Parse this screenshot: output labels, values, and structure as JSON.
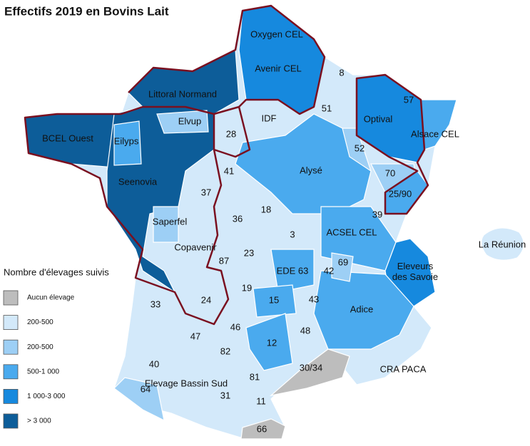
{
  "title": "Effectifs 2019 en Bovins Lait",
  "legend": {
    "title": "Nombre d'élevages suivis",
    "items": [
      {
        "label": "Aucun élevage",
        "color": "#bdbdbd"
      },
      {
        "label": "200-500",
        "color": "#d3e9fa"
      },
      {
        "label": "200-500",
        "color": "#9dcff5"
      },
      {
        "label": "500-1 000",
        "color": "#4aaaee"
      },
      {
        "label": "1 000-3 000",
        "color": "#1689de"
      },
      {
        "label": "> 3 000",
        "color": "#0d5d99"
      }
    ]
  },
  "labels": [
    "Oxygen CEL",
    "Avenir CEL",
    "8",
    "57",
    "Littoral Normand",
    "51",
    "Optival",
    "Alsace CEL",
    "IDF",
    "Elvup",
    "28",
    "BCEL Ouest",
    "Eilyps",
    "52",
    "41",
    "Alysé",
    "70",
    "Seenovia",
    "25/90",
    "37",
    "18",
    "36",
    "39",
    "Saperfel",
    "3",
    "ACSEL CEL",
    "La Réunion",
    "Copavenir",
    "87",
    "23",
    "69",
    "EDE 63",
    "42",
    "Eleveurs des Savoie",
    "19",
    "33",
    "24",
    "15",
    "43",
    "Adice",
    "46",
    "48",
    "47",
    "82",
    "12",
    "40",
    "30/34",
    "CRA PACA",
    "81",
    "Elevage Bassin Sud",
    "64",
    "31",
    "11",
    "66"
  ]
}
